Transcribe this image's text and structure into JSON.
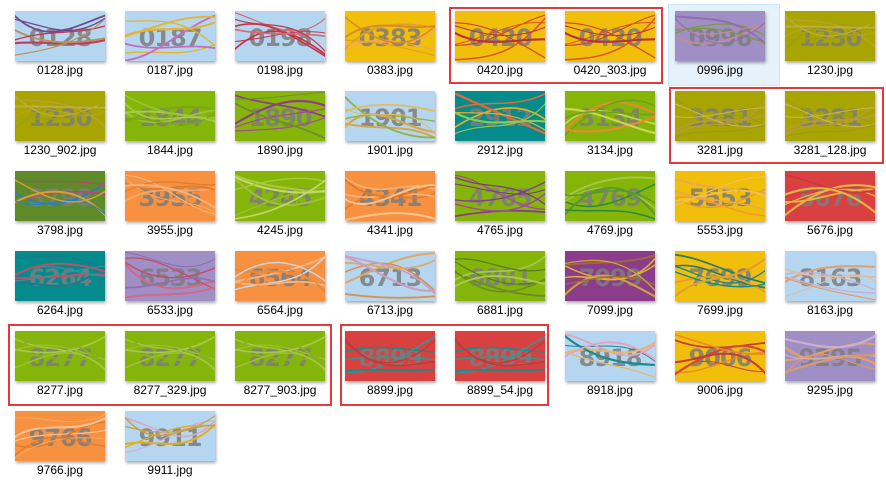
{
  "files": [
    {
      "name": "0128.jpg",
      "code": "0128",
      "bg": "#b5d6f1",
      "lines": [
        "#c23c55",
        "#b8925c",
        "#6f4a8a"
      ]
    },
    {
      "name": "0187.jpg",
      "code": "0187",
      "bg": "#b5d6f1",
      "lines": [
        "#e8b62c",
        "#c46fbd",
        "#e3b430"
      ]
    },
    {
      "name": "0198.jpg",
      "code": "0198",
      "bg": "#b5d6f1",
      "lines": [
        "#cc2f43",
        "#d26b72",
        "#c03b55"
      ]
    },
    {
      "name": "0383.jpg",
      "code": "0383",
      "bg": "#f1be09",
      "lines": [
        "#e0a224",
        "#f0a75a",
        "#d88a2a"
      ]
    },
    {
      "name": "0420.jpg",
      "code": "0420",
      "bg": "#f1be09",
      "lines": [
        "#cf4137",
        "#d9552a",
        "#b7323a"
      ]
    },
    {
      "name": "0420_303.jpg",
      "code": "0420",
      "bg": "#f1be09",
      "lines": [
        "#cf4137",
        "#d9552a",
        "#b7323a"
      ]
    },
    {
      "name": "0996.jpg",
      "code": "0996",
      "bg": "#a08fc5",
      "lines": [
        "#7a9a44",
        "#c88a9a",
        "#8f6fb0"
      ]
    },
    {
      "name": "1230.jpg",
      "code": "1230",
      "bg": "#a9a500",
      "lines": [
        "#b8a12c",
        "#9f9f10",
        "#c0ae3a"
      ]
    },
    {
      "name": "1230_902.jpg",
      "code": "1230",
      "bg": "#a9a500",
      "lines": [
        "#b8a12c",
        "#9f9f10",
        "#c0ae3a"
      ]
    },
    {
      "name": "1844.jpg",
      "code": "1844",
      "bg": "#86b50a",
      "lines": [
        "#9dc33b",
        "#7aa617",
        "#a6c94a"
      ]
    },
    {
      "name": "1890.jpg",
      "code": "1890",
      "bg": "#86b50a",
      "lines": [
        "#8e3f87",
        "#a54b99",
        "#6f8d2f"
      ]
    },
    {
      "name": "1901.jpg",
      "code": "1901",
      "bg": "#b5d6f1",
      "lines": [
        "#d6a848",
        "#8fb34a",
        "#e0bc60"
      ]
    },
    {
      "name": "2912.jpg",
      "code": "2912",
      "bg": "#058b8b",
      "lines": [
        "#e3b020",
        "#e06a3a",
        "#8fc850"
      ]
    },
    {
      "name": "3134.jpg",
      "code": "3134",
      "bg": "#86b50a",
      "lines": [
        "#e88a2c",
        "#c9d650",
        "#6fa020"
      ]
    },
    {
      "name": "3281.jpg",
      "code": "3281",
      "bg": "#a9a500",
      "lines": [
        "#b89a3c",
        "#9d9a1a",
        "#c8b44c"
      ]
    },
    {
      "name": "3281_128.jpg",
      "code": "3281",
      "bg": "#a9a500",
      "lines": [
        "#b89a3c",
        "#9d9a1a",
        "#c8b44c"
      ]
    },
    {
      "name": "3798.jpg",
      "code": "3798",
      "bg": "#5e8a2a",
      "lines": [
        "#2e7ec2",
        "#c43e7a",
        "#d8a030"
      ]
    },
    {
      "name": "3955.jpg",
      "code": "3955",
      "bg": "#f7903f",
      "lines": [
        "#f2a864",
        "#e07c2e",
        "#f6b27a"
      ]
    },
    {
      "name": "4245.jpg",
      "code": "4245",
      "bg": "#86b50a",
      "lines": [
        "#a8c940",
        "#9fbf34",
        "#c2d86a"
      ]
    },
    {
      "name": "4341.jpg",
      "code": "4341",
      "bg": "#f7903f",
      "lines": [
        "#f4b070",
        "#e07830",
        "#f8c490"
      ]
    },
    {
      "name": "4765.jpg",
      "code": "4765",
      "bg": "#86b50a",
      "lines": [
        "#8b3d8c",
        "#a04aa0",
        "#7f3a7f"
      ]
    },
    {
      "name": "4769.jpg",
      "code": "4769",
      "bg": "#86b50a",
      "lines": [
        "#2e8a3e",
        "#a6c84a",
        "#5a9a2c"
      ]
    },
    {
      "name": "5553.jpg",
      "code": "5553",
      "bg": "#f1be09",
      "lines": [
        "#f09a2a",
        "#e8a94a",
        "#f3c24a"
      ]
    },
    {
      "name": "5676.jpg",
      "code": "5676",
      "bg": "#d94141",
      "lines": [
        "#e8b23a",
        "#c93a3a",
        "#eab04a"
      ]
    },
    {
      "name": "6264.jpg",
      "code": "6264",
      "bg": "#058b8b",
      "lines": [
        "#1a7a8a",
        "#c84c6a",
        "#2a9a9a"
      ]
    },
    {
      "name": "6533.jpg",
      "code": "6533",
      "bg": "#a08fc5",
      "lines": [
        "#c44c6c",
        "#8f6fb0",
        "#d06a8a"
      ]
    },
    {
      "name": "6564.jpg",
      "code": "6564",
      "bg": "#f7903f",
      "lines": [
        "#f6b27a",
        "#e88a40",
        "#c8d8e8"
      ]
    },
    {
      "name": "6713.jpg",
      "code": "6713",
      "bg": "#b5d6f1",
      "lines": [
        "#e0a860",
        "#d8904a",
        "#c8a0c0"
      ]
    },
    {
      "name": "6881.jpg",
      "code": "6881",
      "bg": "#86b50a",
      "lines": [
        "#6a8a2a",
        "#a8c850",
        "#5a7a20"
      ]
    },
    {
      "name": "7099.jpg",
      "code": "7099",
      "bg": "#8b3d8c",
      "lines": [
        "#e0b030",
        "#9f6a30",
        "#c8a040"
      ]
    },
    {
      "name": "7699.jpg",
      "code": "7699",
      "bg": "#f1be09",
      "lines": [
        "#1a8a8a",
        "#2a7a6a",
        "#e0a030"
      ]
    },
    {
      "name": "8163.jpg",
      "code": "8163",
      "bg": "#b5d6f1",
      "lines": [
        "#e0a070",
        "#c8b0d0",
        "#d8c0a0"
      ]
    },
    {
      "name": "8277.jpg",
      "code": "8277",
      "bg": "#86b50a",
      "lines": [
        "#9cc030",
        "#a6c84a",
        "#8ab020"
      ]
    },
    {
      "name": "8277_329.jpg",
      "code": "8277",
      "bg": "#86b50a",
      "lines": [
        "#9cc030",
        "#a6c84a",
        "#8ab020"
      ]
    },
    {
      "name": "8277_903.jpg",
      "code": "8277",
      "bg": "#86b50a",
      "lines": [
        "#9cc030",
        "#a6c84a",
        "#8ab020"
      ]
    },
    {
      "name": "8899.jpg",
      "code": "8899",
      "bg": "#d94141",
      "lines": [
        "#1a8a8a",
        "#2a9a9a",
        "#c03a3a"
      ]
    },
    {
      "name": "8899_54.jpg",
      "code": "8899",
      "bg": "#d94141",
      "lines": [
        "#1a8a8a",
        "#2a9a9a",
        "#c03a3a"
      ]
    },
    {
      "name": "8918.jpg",
      "code": "8918",
      "bg": "#b5d6f1",
      "lines": [
        "#1a8a8a",
        "#e8a0c0",
        "#e0b870"
      ]
    },
    {
      "name": "9006.jpg",
      "code": "9006",
      "bg": "#f1be09",
      "lines": [
        "#c83a3a",
        "#e8882a",
        "#d04a3a"
      ]
    },
    {
      "name": "9295.jpg",
      "code": "9295",
      "bg": "#a08fc5",
      "lines": [
        "#e8a060",
        "#c8b0d0",
        "#d89a70"
      ]
    },
    {
      "name": "9766.jpg",
      "code": "9766",
      "bg": "#f7903f",
      "lines": [
        "#f8c090",
        "#e07830",
        "#f4a860"
      ]
    },
    {
      "name": "9911.jpg",
      "code": "9911",
      "bg": "#b5d6f1",
      "lines": [
        "#e0b020",
        "#d8a8c8",
        "#c8a040"
      ]
    }
  ],
  "selected_file": "0996.jpg",
  "colors": {
    "highlight": "#e0393e",
    "selection": "#e5f1fb",
    "digit": "#7d7d7d"
  }
}
